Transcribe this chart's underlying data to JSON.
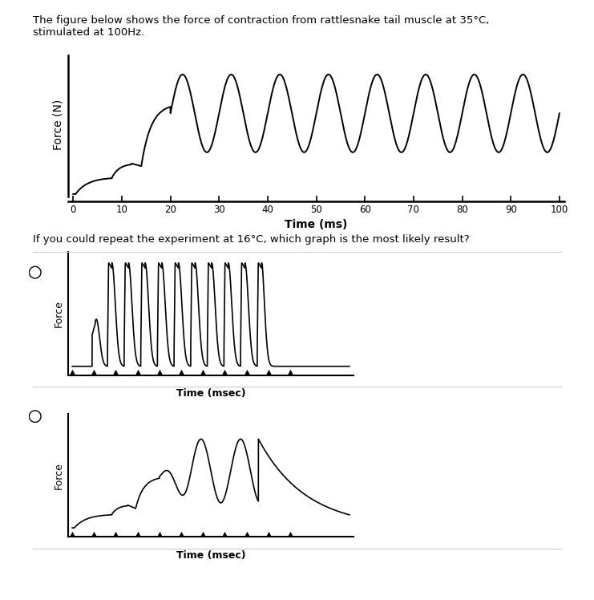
{
  "title_text": "The figure below shows the force of contraction from rattlesnake tail muscle at 35°C,\nstimulated at 100Hz.",
  "question_text": "If you could repeat the experiment at 16°C, which graph is the most likely result?",
  "top_xlabel": "Time (ms)",
  "sub_xlabel": "Time (msec)",
  "top_ylabel": "Force (N)",
  "sub_ylabel": "Force",
  "line_color": "#000000",
  "fig_bg": "#ffffff",
  "separator_color": "#cccccc"
}
